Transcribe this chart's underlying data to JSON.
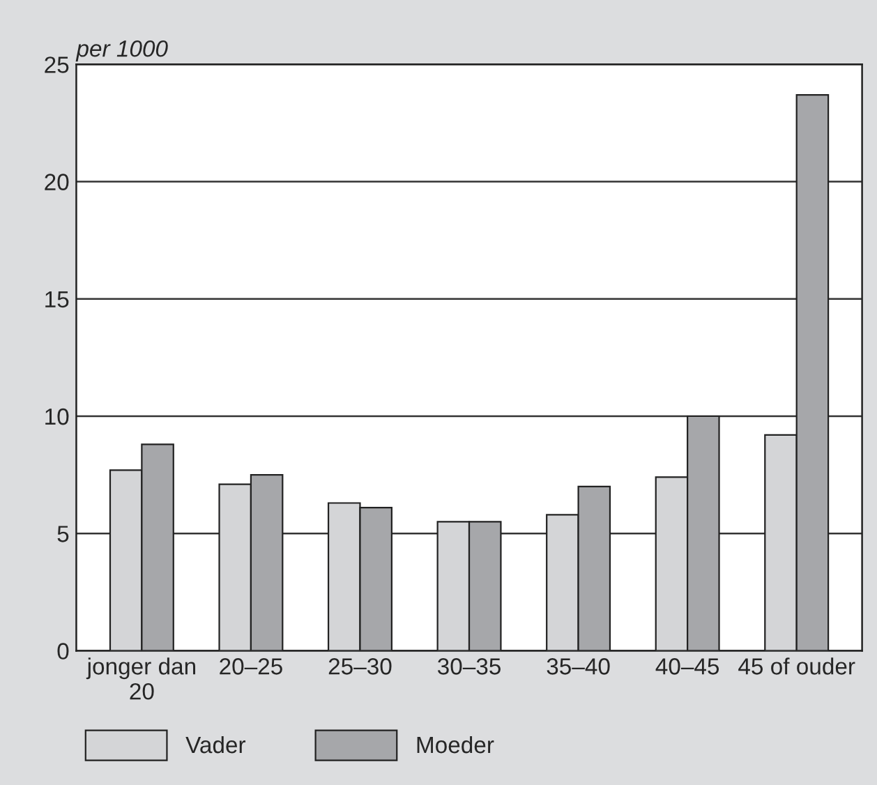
{
  "chart_data": {
    "type": "bar",
    "ylabel": "per 1000",
    "categories": [
      "jonger dan\n20",
      "20–25",
      "25–30",
      "30–35",
      "35–40",
      "40–45",
      "45 of ouder"
    ],
    "series": [
      {
        "name": "Vader",
        "color": "#d4d5d7",
        "values": [
          7.7,
          7.1,
          6.3,
          5.5,
          5.8,
          7.4,
          9.2
        ]
      },
      {
        "name": "Moeder",
        "color": "#a6a7aa",
        "values": [
          8.8,
          7.5,
          6.1,
          5.5,
          7.0,
          10.0,
          23.7
        ]
      }
    ],
    "ylim": [
      0,
      25
    ],
    "yticks": [
      0,
      5,
      10,
      15,
      20,
      25
    ],
    "grid": "y",
    "legend": "bottom left"
  }
}
